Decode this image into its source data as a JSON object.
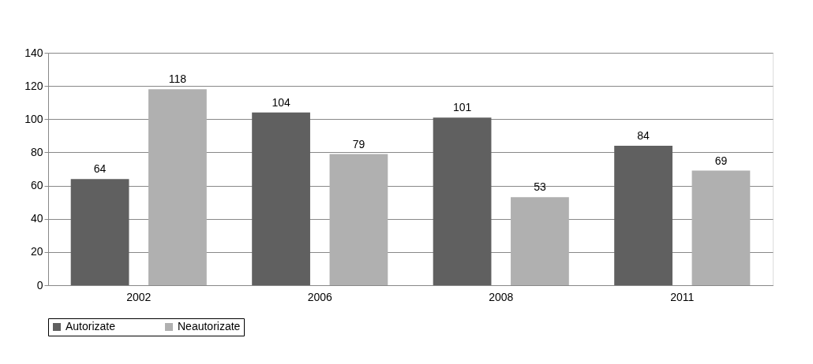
{
  "chart_data": {
    "type": "bar",
    "categories": [
      "2002",
      "2006",
      "2008",
      "2011"
    ],
    "series": [
      {
        "name": "Autorizate",
        "color": "#606060",
        "values": [
          64,
          104,
          101,
          84
        ]
      },
      {
        "name": "Neautorizate",
        "color": "#b0b0b0",
        "values": [
          118,
          79,
          53,
          69
        ]
      }
    ],
    "ylim": [
      0,
      140
    ],
    "yticks": [
      0,
      20,
      40,
      60,
      80,
      100,
      120,
      140
    ],
    "grid": "y",
    "legend": "bottom",
    "data_labels": true
  }
}
